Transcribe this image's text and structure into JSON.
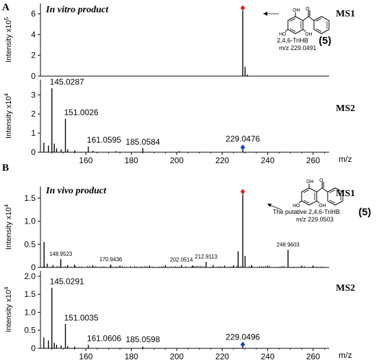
{
  "panels": [
    {
      "letter": "A",
      "sample_label": "In vitro product",
      "compound": {
        "name": "2,4,6-TriHB",
        "number": "(5)",
        "mz_label": "m/z 229.0491"
      },
      "ms1_label": "MS1",
      "ms2_label": "MS2"
    },
    {
      "letter": "B",
      "sample_label": "In vivo product",
      "compound": {
        "name": "The putative 2,4,6-TriHB",
        "number": "(5)",
        "mz_label": "m/z 229.0503"
      },
      "ms1_label": "MS1",
      "ms2_label": "MS2"
    }
  ],
  "structure_atoms": {
    "oh": "OH",
    "ho": "HO",
    "o": "O"
  },
  "chart_data": [
    {
      "id": "A-MS1",
      "type": "bar",
      "ylabel": "Intensity x10",
      "ylabel_exp": "5",
      "xlim": [
        140,
        267
      ],
      "ylim": [
        0,
        7
      ],
      "yticks": [
        0,
        2,
        4,
        6
      ],
      "xunit": "",
      "peaks": [
        {
          "x": 229.05,
          "y": 6.3,
          "color": "#000000",
          "marker": "diamond-red"
        },
        {
          "x": 230.05,
          "y": 0.9,
          "color": "#000000"
        },
        {
          "x": 231.05,
          "y": 0.15,
          "color": "#000000"
        }
      ],
      "peak_labels": []
    },
    {
      "id": "A-MS2",
      "type": "bar",
      "ylabel": "Intensity x10",
      "ylabel_exp": "4",
      "xlim": [
        140,
        267
      ],
      "ylim": [
        0,
        3.8
      ],
      "yticks": [
        0,
        1,
        2,
        3
      ],
      "xticks": [
        160,
        180,
        200,
        220,
        240,
        260
      ],
      "xunit": "m/z",
      "peaks": [
        {
          "x": 141.5,
          "y": 0.5
        },
        {
          "x": 143.5,
          "y": 0.35
        },
        {
          "x": 145.03,
          "y": 3.35
        },
        {
          "x": 146.1,
          "y": 0.45
        },
        {
          "x": 147.1,
          "y": 0.2
        },
        {
          "x": 149.1,
          "y": 0.15
        },
        {
          "x": 151.0,
          "y": 1.75
        },
        {
          "x": 152.0,
          "y": 0.15
        },
        {
          "x": 155.1,
          "y": 0.1
        },
        {
          "x": 161.06,
          "y": 0.3
        },
        {
          "x": 163.1,
          "y": 0.08
        },
        {
          "x": 173.1,
          "y": 0.05
        },
        {
          "x": 185.06,
          "y": 0.22
        },
        {
          "x": 201.1,
          "y": 0.05
        },
        {
          "x": 229.05,
          "y": 0.15,
          "marker": "diamond-blue"
        }
      ],
      "peak_labels": [
        {
          "x": 145.0287,
          "text": "145.0287",
          "y": 3.35
        },
        {
          "x": 151.0026,
          "text": "151.0026",
          "y": 1.75
        },
        {
          "x": 161.0595,
          "text": "161.0595",
          "y": 0.35
        },
        {
          "x": 185.0584,
          "text": "185.0584",
          "y": 0.22
        },
        {
          "x": 229.0476,
          "text": "229.0476",
          "y": 0.2
        }
      ]
    },
    {
      "id": "B-MS1",
      "type": "bar",
      "ylabel": "Intensity x10",
      "ylabel_exp": "4",
      "xlim": [
        140,
        267
      ],
      "ylim": [
        0,
        1.75
      ],
      "yticks": [
        0,
        0.5,
        1.0,
        1.5
      ],
      "xunit": "",
      "peaks": [
        {
          "x": 141.6,
          "y": 0.55
        },
        {
          "x": 143.0,
          "y": 0.08
        },
        {
          "x": 145.5,
          "y": 0.05
        },
        {
          "x": 148.95,
          "y": 0.18
        },
        {
          "x": 152.0,
          "y": 0.05
        },
        {
          "x": 155.0,
          "y": 0.06
        },
        {
          "x": 163.0,
          "y": 0.05
        },
        {
          "x": 170.94,
          "y": 0.06
        },
        {
          "x": 175.0,
          "y": 0.04
        },
        {
          "x": 188.0,
          "y": 0.04
        },
        {
          "x": 195.0,
          "y": 0.05
        },
        {
          "x": 202.05,
          "y": 0.05
        },
        {
          "x": 207.0,
          "y": 0.04
        },
        {
          "x": 212.91,
          "y": 0.12
        },
        {
          "x": 216.0,
          "y": 0.05
        },
        {
          "x": 221.0,
          "y": 0.04
        },
        {
          "x": 225.0,
          "y": 0.05
        },
        {
          "x": 227.0,
          "y": 0.35
        },
        {
          "x": 229.05,
          "y": 1.58,
          "marker": "diamond-red"
        },
        {
          "x": 230.05,
          "y": 0.25
        },
        {
          "x": 233.0,
          "y": 0.05
        },
        {
          "x": 240.0,
          "y": 0.04
        },
        {
          "x": 248.96,
          "y": 0.38
        },
        {
          "x": 255.0,
          "y": 0.04
        },
        {
          "x": 260.0,
          "y": 0.04
        }
      ],
      "noise": true,
      "peak_labels": [
        {
          "x": 148.9523,
          "text": "148.9523",
          "y": 0.18
        },
        {
          "x": 170.9436,
          "text": "170.9436",
          "y": 0.06
        },
        {
          "x": 202.0514,
          "text": "202.0514",
          "y": 0.05
        },
        {
          "x": 212.9113,
          "text": "212.9113",
          "y": 0.12
        },
        {
          "x": 248.9603,
          "text": "248.9603",
          "y": 0.38
        }
      ]
    },
    {
      "id": "B-MS2",
      "type": "bar",
      "ylabel": "Intensity x10",
      "ylabel_exp": "4",
      "xlim": [
        140,
        267
      ],
      "ylim": [
        0,
        2.15
      ],
      "yticks": [
        0,
        0.5,
        1.0,
        1.5,
        2.0
      ],
      "xticks": [
        160,
        180,
        200,
        220,
        240,
        260
      ],
      "xunit": "m/z",
      "peaks": [
        {
          "x": 141.5,
          "y": 0.3
        },
        {
          "x": 143.5,
          "y": 0.22
        },
        {
          "x": 145.03,
          "y": 1.68
        },
        {
          "x": 146.1,
          "y": 0.15
        },
        {
          "x": 147.1,
          "y": 0.1
        },
        {
          "x": 149.1,
          "y": 0.08
        },
        {
          "x": 151.0,
          "y": 0.68
        },
        {
          "x": 152.0,
          "y": 0.06
        },
        {
          "x": 155.1,
          "y": 0.05
        },
        {
          "x": 161.06,
          "y": 0.1
        },
        {
          "x": 185.06,
          "y": 0.05
        },
        {
          "x": 229.05,
          "y": 0.05,
          "marker": "diamond-blue"
        }
      ],
      "peak_labels": [
        {
          "x": 145.0291,
          "text": "145.0291",
          "y": 1.68
        },
        {
          "x": 151.0035,
          "text": "151.0035",
          "y": 0.68
        },
        {
          "x": 161.0606,
          "text": "161.0606",
          "y": 0.12
        },
        {
          "x": 185.0598,
          "text": "185.0598",
          "y": 0.08
        },
        {
          "x": 229.0496,
          "text": "229.0496",
          "y": 0.05
        }
      ]
    }
  ]
}
